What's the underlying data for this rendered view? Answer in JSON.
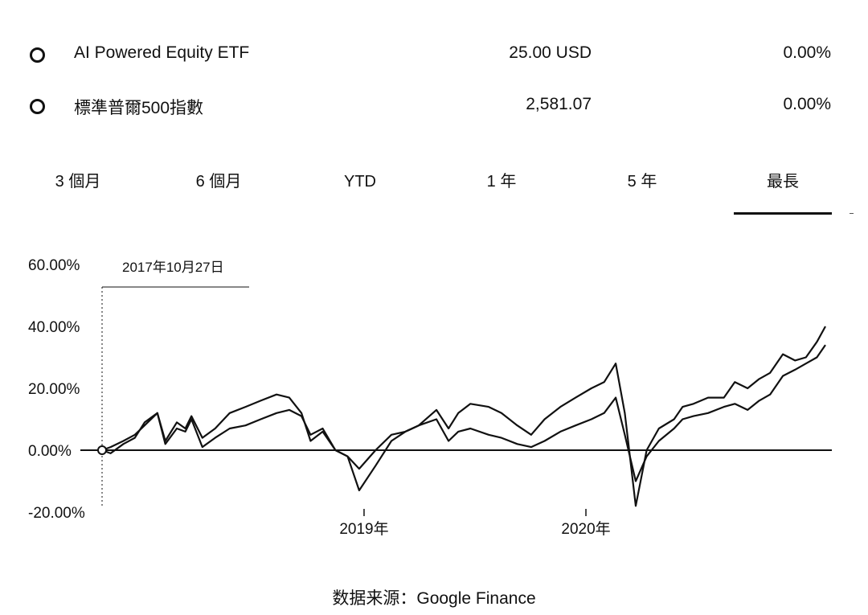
{
  "legend": [
    {
      "name": "AI Powered Equity ETF",
      "price": "25.00 USD",
      "change": "0.00%"
    },
    {
      "name": "標準普爾500指數",
      "price": "2,581.07",
      "change": "0.00%"
    }
  ],
  "tabs": [
    {
      "label": "3 個月",
      "selected": false
    },
    {
      "label": "6 個月",
      "selected": false
    },
    {
      "label": "YTD",
      "selected": false
    },
    {
      "label": "1 年",
      "selected": false
    },
    {
      "label": "5 年",
      "selected": false
    },
    {
      "label": "最長",
      "selected": true
    }
  ],
  "source": "数据来源：Google Finance",
  "chart_data": {
    "type": "line",
    "hover_date": "2017年10月27日",
    "y_ticks": [
      "60.00%",
      "40.00%",
      "20.00%",
      "0.00%",
      "-20.00%"
    ],
    "y_tick_values": [
      60,
      40,
      20,
      0,
      -20
    ],
    "x_ticks": [
      {
        "label": "2019年",
        "date": "2019-01-01"
      },
      {
        "label": "2020年",
        "date": "2020-01-01"
      }
    ],
    "x_range": [
      "2017-10-27",
      "2021-01-29"
    ],
    "ylim": [
      -20,
      60
    ],
    "baseline": 0,
    "colors": {
      "line": "#111111",
      "axis": "#111111"
    },
    "series": [
      {
        "name": "AI Powered Equity ETF",
        "x": [
          "2017-10-27",
          "2017-11-10",
          "2017-12-01",
          "2017-12-20",
          "2018-01-05",
          "2018-01-26",
          "2018-02-08",
          "2018-02-27",
          "2018-03-13",
          "2018-03-23",
          "2018-04-10",
          "2018-05-01",
          "2018-05-25",
          "2018-06-20",
          "2018-07-15",
          "2018-08-10",
          "2018-08-31",
          "2018-09-20",
          "2018-10-05",
          "2018-10-25",
          "2018-11-15",
          "2018-12-05",
          "2018-12-24",
          "2019-01-20",
          "2019-02-15",
          "2019-03-10",
          "2019-04-01",
          "2019-04-30",
          "2019-05-20",
          "2019-06-05",
          "2019-06-25",
          "2019-07-25",
          "2019-08-15",
          "2019-09-10",
          "2019-10-03",
          "2019-10-25",
          "2019-11-20",
          "2019-12-15",
          "2020-01-10",
          "2020-01-31",
          "2020-02-19",
          "2020-03-05",
          "2020-03-23",
          "2020-04-10",
          "2020-04-30",
          "2020-05-25",
          "2020-06-08",
          "2020-06-26",
          "2020-07-20",
          "2020-08-15",
          "2020-09-02",
          "2020-09-23",
          "2020-10-12",
          "2020-10-30",
          "2020-11-20",
          "2020-12-10",
          "2020-12-28",
          "2021-01-15",
          "2021-01-29"
        ],
        "y": [
          0,
          -1,
          2,
          4,
          9,
          12,
          3,
          9,
          7,
          11,
          4,
          7,
          12,
          14,
          16,
          18,
          17,
          12,
          3,
          6,
          0,
          -2,
          -13,
          -5,
          3,
          6,
          8,
          13,
          7,
          12,
          15,
          14,
          12,
          8,
          5,
          10,
          14,
          17,
          20,
          22,
          28,
          12,
          -18,
          0,
          7,
          10,
          14,
          15,
          17,
          17,
          22,
          20,
          23,
          25,
          31,
          29,
          30,
          35,
          40
        ]
      },
      {
        "name": "標準普爾500指數",
        "x": [
          "2017-10-27",
          "2017-11-10",
          "2017-12-01",
          "2017-12-20",
          "2018-01-05",
          "2018-01-26",
          "2018-02-08",
          "2018-02-27",
          "2018-03-13",
          "2018-03-23",
          "2018-04-10",
          "2018-05-01",
          "2018-05-25",
          "2018-06-20",
          "2018-07-15",
          "2018-08-10",
          "2018-08-31",
          "2018-09-20",
          "2018-10-05",
          "2018-10-25",
          "2018-11-15",
          "2018-12-05",
          "2018-12-24",
          "2019-01-20",
          "2019-02-15",
          "2019-03-10",
          "2019-04-01",
          "2019-04-30",
          "2019-05-20",
          "2019-06-05",
          "2019-06-25",
          "2019-07-25",
          "2019-08-15",
          "2019-09-10",
          "2019-10-03",
          "2019-10-25",
          "2019-11-20",
          "2019-12-15",
          "2020-01-10",
          "2020-01-31",
          "2020-02-19",
          "2020-03-05",
          "2020-03-23",
          "2020-04-10",
          "2020-04-30",
          "2020-05-25",
          "2020-06-08",
          "2020-06-26",
          "2020-07-20",
          "2020-08-15",
          "2020-09-02",
          "2020-09-23",
          "2020-10-12",
          "2020-10-30",
          "2020-11-20",
          "2020-12-10",
          "2020-12-28",
          "2021-01-15",
          "2021-01-29"
        ],
        "y": [
          0,
          1,
          3,
          5,
          8,
          12,
          2,
          7,
          6,
          10,
          1,
          4,
          7,
          8,
          10,
          12,
          13,
          11,
          5,
          7,
          0,
          -2,
          -6,
          0,
          5,
          6,
          8,
          10,
          3,
          6,
          7,
          5,
          4,
          2,
          1,
          3,
          6,
          8,
          10,
          12,
          17,
          5,
          -10,
          -2,
          3,
          7,
          10,
          11,
          12,
          14,
          15,
          13,
          16,
          18,
          24,
          26,
          28,
          30,
          34
        ]
      }
    ]
  }
}
